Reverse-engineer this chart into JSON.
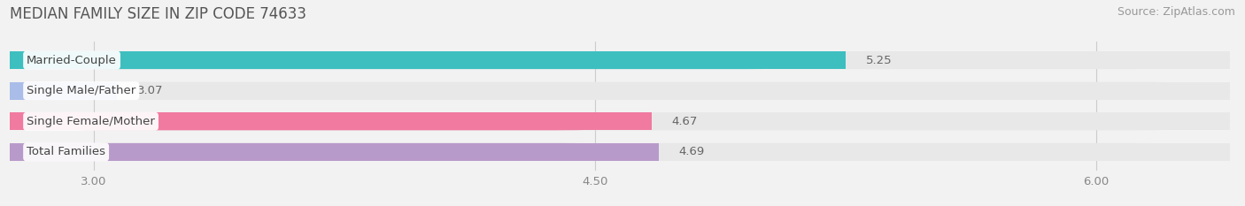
{
  "title": "MEDIAN FAMILY SIZE IN ZIP CODE 74633",
  "source": "Source: ZipAtlas.com",
  "categories": [
    "Married-Couple",
    "Single Male/Father",
    "Single Female/Mother",
    "Total Families"
  ],
  "values": [
    5.25,
    3.07,
    4.67,
    4.69
  ],
  "bar_colors": [
    "#3dbfbf",
    "#aabde8",
    "#f07aa0",
    "#b89aca"
  ],
  "xmin": 2.75,
  "xmax": 6.4,
  "xticks": [
    3.0,
    4.5,
    6.0
  ],
  "xtick_labels": [
    "3.00",
    "4.50",
    "6.00"
  ],
  "background_color": "#f2f2f2",
  "bar_bg_color": "#e8e8e8",
  "label_fontsize": 9.5,
  "value_fontsize": 9.5,
  "title_fontsize": 12,
  "source_fontsize": 9
}
